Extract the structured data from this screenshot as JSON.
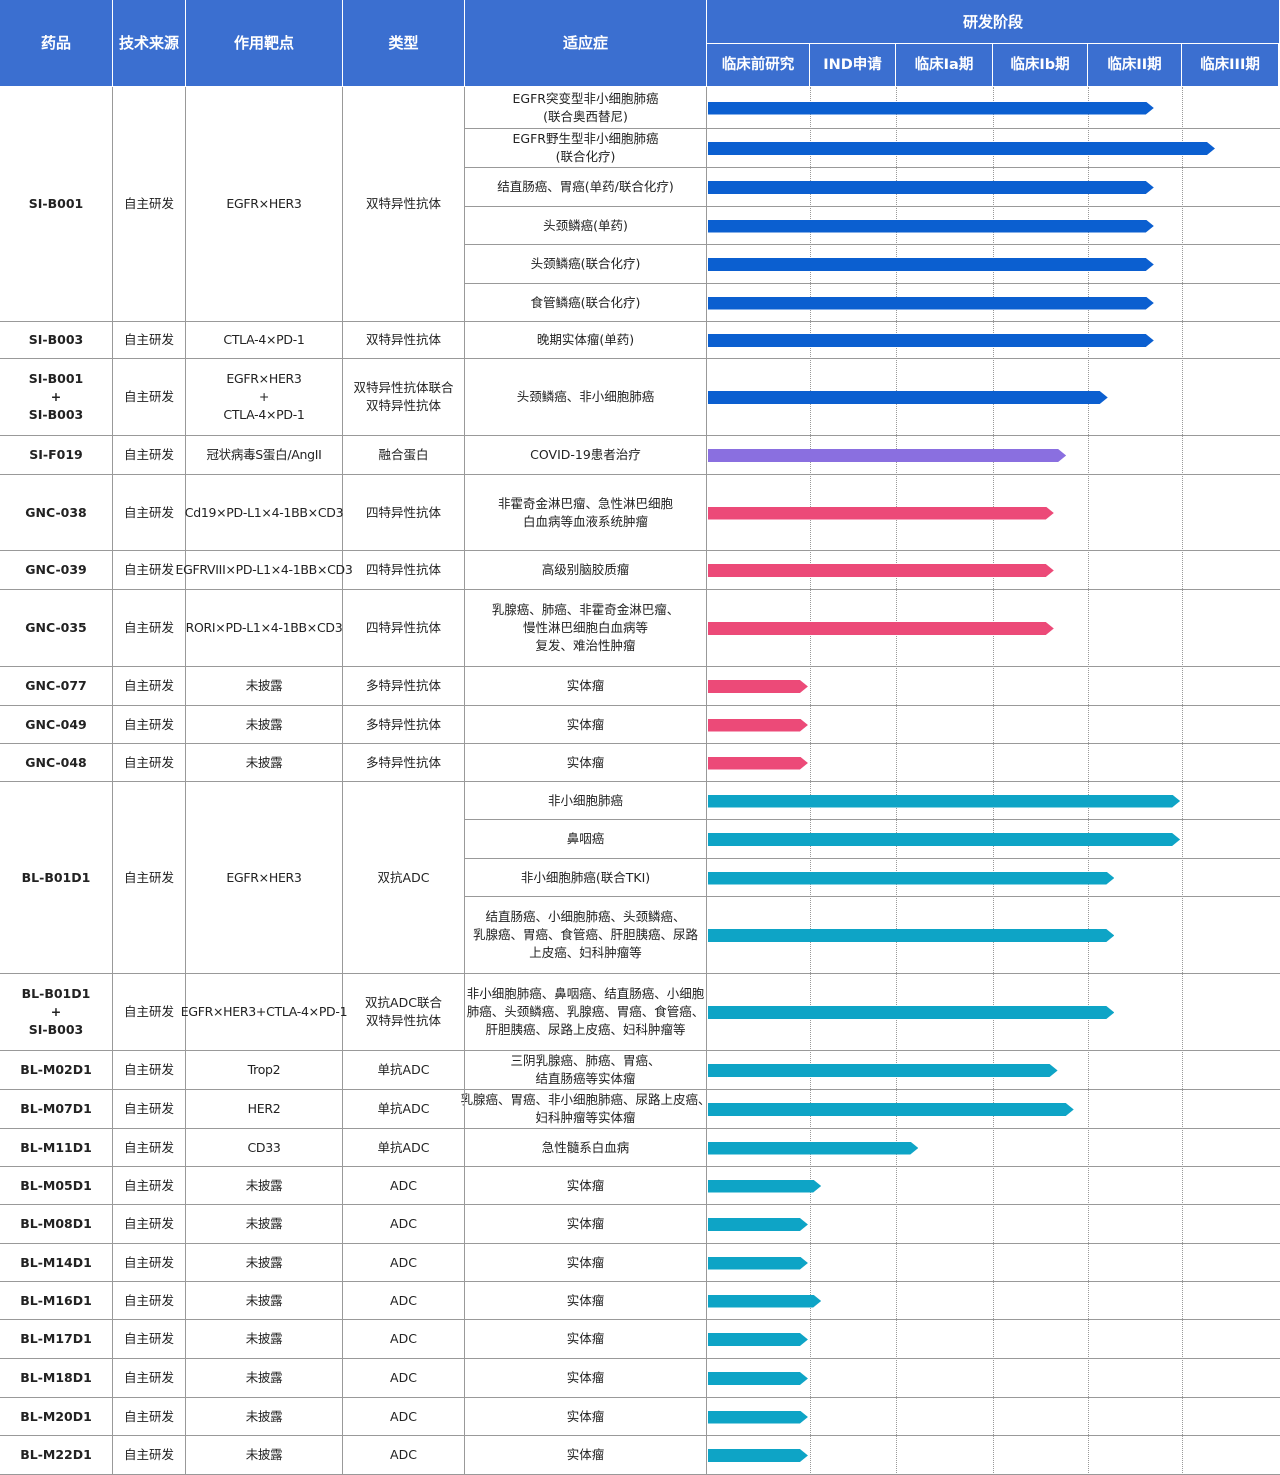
{
  "header": {
    "drug": "药品",
    "source": "技术来源",
    "target": "作用靶点",
    "type": "类型",
    "indication": "适应症",
    "stage_group": "研发阶段",
    "stages": [
      "临床前研究",
      "IND申请",
      "临床Ia期",
      "临床Ib期",
      "临床II期",
      "临床III期"
    ]
  },
  "drugs": [
    {
      "name": [
        "SI-B001"
      ],
      "source": "自主研发",
      "target": [
        "EGFR×HER3"
      ],
      "type": [
        "双特异性抗体"
      ],
      "color": "#0b5fd0",
      "indications": [
        {
          "text": [
            "EGFR突变型非小细胞肺癌",
            "(联合奥西替尼)"
          ],
          "progress": 4.7
        },
        {
          "text": [
            "EGFR野生型非小细胞肺癌",
            "(联合化疗)"
          ],
          "progress": 5.34
        },
        {
          "text": [
            "结直肠癌、胃癌(单药/联合化疗)"
          ],
          "progress": 4.7
        },
        {
          "text": [
            "头颈鳞癌(单药)"
          ],
          "progress": 4.7
        },
        {
          "text": [
            "头颈鳞癌(联合化疗)"
          ],
          "progress": 4.7
        },
        {
          "text": [
            "食管鳞癌(联合化疗)"
          ],
          "progress": 4.7
        }
      ]
    },
    {
      "name": [
        "SI-B003"
      ],
      "source": "自主研发",
      "target": [
        "CTLA-4×PD-1"
      ],
      "type": [
        "双特异性抗体"
      ],
      "color": "#0b5fd0",
      "indications": [
        {
          "text": [
            "晚期实体瘤(单药)"
          ],
          "progress": 4.7
        }
      ]
    },
    {
      "name": [
        "SI-B001",
        "+",
        "SI-B003"
      ],
      "source": "自主研发",
      "target": [
        "EGFR×HER3",
        "+",
        "CTLA-4×PD-1"
      ],
      "type": [
        "双特异性抗体联合",
        "双特异性抗体"
      ],
      "color": "#0b5fd0",
      "indications": [
        {
          "text": [
            "头颈鳞癌、非小细胞肺癌"
          ],
          "progress": 4.21
        }
      ]
    },
    {
      "name": [
        "SI-F019"
      ],
      "source": "自主研发",
      "target": [
        "冠状病毒S蛋白/AngII"
      ],
      "type": [
        "融合蛋白"
      ],
      "color": "#8a6fe0",
      "indications": [
        {
          "text": [
            "COVID-19患者治疗"
          ],
          "progress": 3.77
        }
      ]
    },
    {
      "name": [
        "GNC-038"
      ],
      "source": "自主研发",
      "target": [
        "Cd19×PD-L1×4-1BB×CD3"
      ],
      "type": [
        "四特异性抗体"
      ],
      "color": "#ec4a78",
      "indications": [
        {
          "text": [
            "非霍奇金淋巴瘤、急性淋巴细胞",
            "白血病等血液系统肿瘤"
          ],
          "progress": 3.64
        }
      ]
    },
    {
      "name": [
        "GNC-039"
      ],
      "source": "自主研发",
      "target": [
        "EGFRVIII×PD-L1×4-1BB×CD3"
      ],
      "type": [
        "四特异性抗体"
      ],
      "color": "#ec4a78",
      "indications": [
        {
          "text": [
            "高级别脑胶质瘤"
          ],
          "progress": 3.64
        }
      ]
    },
    {
      "name": [
        "GNC-035"
      ],
      "source": "自主研发",
      "target": [
        "RORI×PD-L1×4-1BB×CD3"
      ],
      "type": [
        "四特异性抗体"
      ],
      "color": "#ec4a78",
      "indications": [
        {
          "text": [
            "乳腺癌、肺癌、非霍奇金淋巴瘤、",
            "慢性淋巴细胞白血病等",
            "复发、难治性肿瘤"
          ],
          "progress": 3.64
        }
      ]
    },
    {
      "name": [
        "GNC-077"
      ],
      "source": "自主研发",
      "target": [
        "未披露"
      ],
      "type": [
        "多特异性抗体"
      ],
      "color": "#ec4a78",
      "indications": [
        {
          "text": [
            "实体瘤"
          ],
          "progress": 0.98
        }
      ]
    },
    {
      "name": [
        "GNC-049"
      ],
      "source": "自主研发",
      "target": [
        "未披露"
      ],
      "type": [
        "多特异性抗体"
      ],
      "color": "#ec4a78",
      "indications": [
        {
          "text": [
            "实体瘤"
          ],
          "progress": 0.98
        }
      ]
    },
    {
      "name": [
        "GNC-048"
      ],
      "source": "自主研发",
      "target": [
        "未披露"
      ],
      "type": [
        "多特异性抗体"
      ],
      "color": "#ec4a78",
      "indications": [
        {
          "text": [
            "实体瘤"
          ],
          "progress": 0.98
        }
      ]
    },
    {
      "name": [
        "BL-B01D1"
      ],
      "source": "自主研发",
      "target": [
        "EGFR×HER3"
      ],
      "type": [
        "双抗ADC"
      ],
      "color": "#0ea4c6",
      "indications": [
        {
          "text": [
            "非小细胞肺癌"
          ],
          "progress": 4.98
        },
        {
          "text": [
            "鼻咽癌"
          ],
          "progress": 4.98
        },
        {
          "text": [
            "非小细胞肺癌(联合TKI)"
          ],
          "progress": 4.28
        },
        {
          "text": [
            "结直肠癌、小细胞肺癌、头颈鳞癌、",
            "乳腺癌、胃癌、食管癌、肝胆胰癌、尿路",
            "上皮癌、妇科肿瘤等"
          ],
          "progress": 4.28
        }
      ]
    },
    {
      "name": [
        "BL-B01D1",
        "+",
        "SI-B003"
      ],
      "source": "自主研发",
      "target": [
        "EGFR×HER3+CTLA-4×PD-1"
      ],
      "type": [
        "双抗ADC联合",
        "双特异性抗体"
      ],
      "color": "#0ea4c6",
      "indications": [
        {
          "text": [
            "非小细胞肺癌、鼻咽癌、结直肠癌、小细胞",
            "肺癌、头颈鳞癌、乳腺癌、胃癌、食管癌、",
            "肝胆胰癌、尿路上皮癌、妇科肿瘤等"
          ],
          "progress": 4.28
        }
      ]
    },
    {
      "name": [
        "BL-M02D1"
      ],
      "source": "自主研发",
      "target": [
        "Trop2"
      ],
      "type": [
        "单抗ADC"
      ],
      "color": "#0ea4c6",
      "indications": [
        {
          "text": [
            "三阴乳腺癌、肺癌、胃癌、",
            "结直肠癌等实体瘤"
          ],
          "progress": 3.68
        }
      ]
    },
    {
      "name": [
        "BL-M07D1"
      ],
      "source": "自主研发",
      "target": [
        "HER2"
      ],
      "type": [
        "单抗ADC"
      ],
      "color": "#0ea4c6",
      "indications": [
        {
          "text": [
            "乳腺癌、胃癌、非小细胞肺癌、尿路上皮癌、",
            "妇科肿瘤等实体瘤"
          ],
          "progress": 3.85
        }
      ]
    },
    {
      "name": [
        "BL-M11D1"
      ],
      "source": "自主研发",
      "target": [
        "CD33"
      ],
      "type": [
        "单抗ADC"
      ],
      "color": "#0ea4c6",
      "indications": [
        {
          "text": [
            "急性髓系白血病"
          ],
          "progress": 2.23
        }
      ]
    },
    {
      "name": [
        "BL-M05D1"
      ],
      "source": "自主研发",
      "target": [
        "未披露"
      ],
      "type": [
        "ADC"
      ],
      "color": "#0ea4c6",
      "indications": [
        {
          "text": [
            "实体瘤"
          ],
          "progress": 1.13
        }
      ]
    },
    {
      "name": [
        "BL-M08D1"
      ],
      "source": "自主研发",
      "target": [
        "未披露"
      ],
      "type": [
        "ADC"
      ],
      "color": "#0ea4c6",
      "indications": [
        {
          "text": [
            "实体瘤"
          ],
          "progress": 0.98
        }
      ]
    },
    {
      "name": [
        "BL-M14D1"
      ],
      "source": "自主研发",
      "target": [
        "未披露"
      ],
      "type": [
        "ADC"
      ],
      "color": "#0ea4c6",
      "indications": [
        {
          "text": [
            "实体瘤"
          ],
          "progress": 0.98
        }
      ]
    },
    {
      "name": [
        "BL-M16D1"
      ],
      "source": "自主研发",
      "target": [
        "未披露"
      ],
      "type": [
        "ADC"
      ],
      "color": "#0ea4c6",
      "indications": [
        {
          "text": [
            "实体瘤"
          ],
          "progress": 1.13
        }
      ]
    },
    {
      "name": [
        "BL-M17D1"
      ],
      "source": "自主研发",
      "target": [
        "未披露"
      ],
      "type": [
        "ADC"
      ],
      "color": "#0ea4c6",
      "indications": [
        {
          "text": [
            "实体瘤"
          ],
          "progress": 0.98
        }
      ]
    },
    {
      "name": [
        "BL-M18D1"
      ],
      "source": "自主研发",
      "target": [
        "未披露"
      ],
      "type": [
        "ADC"
      ],
      "color": "#0ea4c6",
      "indications": [
        {
          "text": [
            "实体瘤"
          ],
          "progress": 0.98
        }
      ]
    },
    {
      "name": [
        "BL-M20D1"
      ],
      "source": "自主研发",
      "target": [
        "未披露"
      ],
      "type": [
        "ADC"
      ],
      "color": "#0ea4c6",
      "indications": [
        {
          "text": [
            "实体瘤"
          ],
          "progress": 0.98
        }
      ]
    },
    {
      "name": [
        "BL-M22D1"
      ],
      "source": "自主研发",
      "target": [
        "未披露"
      ],
      "type": [
        "ADC"
      ],
      "color": "#0ea4c6",
      "indications": [
        {
          "text": [
            "实体瘤"
          ],
          "progress": 0.98
        }
      ]
    }
  ]
}
